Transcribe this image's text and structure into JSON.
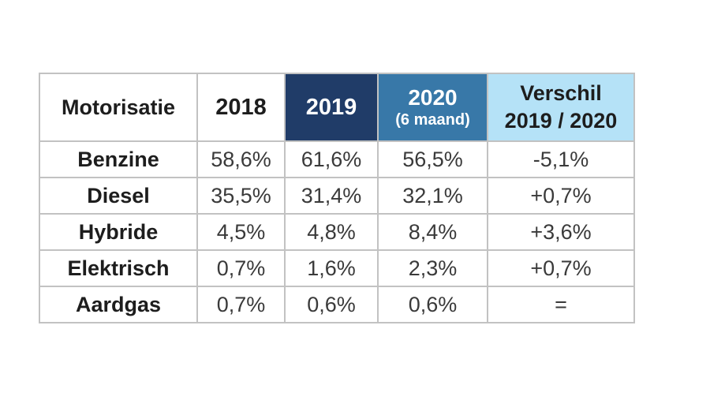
{
  "page": {
    "background": "#FFFFFF"
  },
  "table": {
    "header": {
      "motorisatie": "Motorisatie",
      "y2018": "2018",
      "y2019": "2019",
      "y2020": "2020",
      "y2020_sub": "(6 maand)",
      "verschil_line1": "Verschil",
      "verschil_line2": "2019 / 2020"
    },
    "rows": [
      {
        "label": "Benzine",
        "values": [
          "58,6%",
          "61,6%",
          "56,5%",
          "-5,1%"
        ]
      },
      {
        "label": "Diesel",
        "values": [
          "35,5%",
          "31,4%",
          "32,1%",
          "+0,7%"
        ]
      },
      {
        "label": "Hybride",
        "values": [
          "4,5%",
          "4,8%",
          "8,4%",
          "+3,6%"
        ]
      },
      {
        "label": "Elektrisch",
        "values": [
          "0,7%",
          "1,6%",
          "2,3%",
          "+0,7%"
        ]
      },
      {
        "label": "Aardgas",
        "values": [
          "0,7%",
          "0,6%",
          "0,6%",
          "="
        ]
      }
    ],
    "colors": {
      "header_2019_bg": "#203C68",
      "header_2020_bg": "#3878A8",
      "header_verschil_bg": "#B5E2F7",
      "grid_border": "#C2C2C2",
      "heading_text": "#1D1D1D",
      "value_text": "#3A3A3A",
      "header_light_text": "#FFFFFF"
    }
  },
  "chart_data": {
    "type": "table",
    "title": "",
    "columns": [
      "Motorisatie",
      "2018",
      "2019",
      "2020 (6 maand)",
      "Verschil 2019 / 2020"
    ],
    "rows": [
      [
        "Benzine",
        "58,6%",
        "61,6%",
        "56,5%",
        "-5,1%"
      ],
      [
        "Diesel",
        "35,5%",
        "31,4%",
        "32,1%",
        "+0,7%"
      ],
      [
        "Hybride",
        "4,5%",
        "4,8%",
        "8,4%",
        "+3,6%"
      ],
      [
        "Elektrisch",
        "0,7%",
        "1,6%",
        "2,3%",
        "+0,7%"
      ],
      [
        "Aardgas",
        "0,7%",
        "0,6%",
        "0,6%",
        "="
      ]
    ]
  }
}
